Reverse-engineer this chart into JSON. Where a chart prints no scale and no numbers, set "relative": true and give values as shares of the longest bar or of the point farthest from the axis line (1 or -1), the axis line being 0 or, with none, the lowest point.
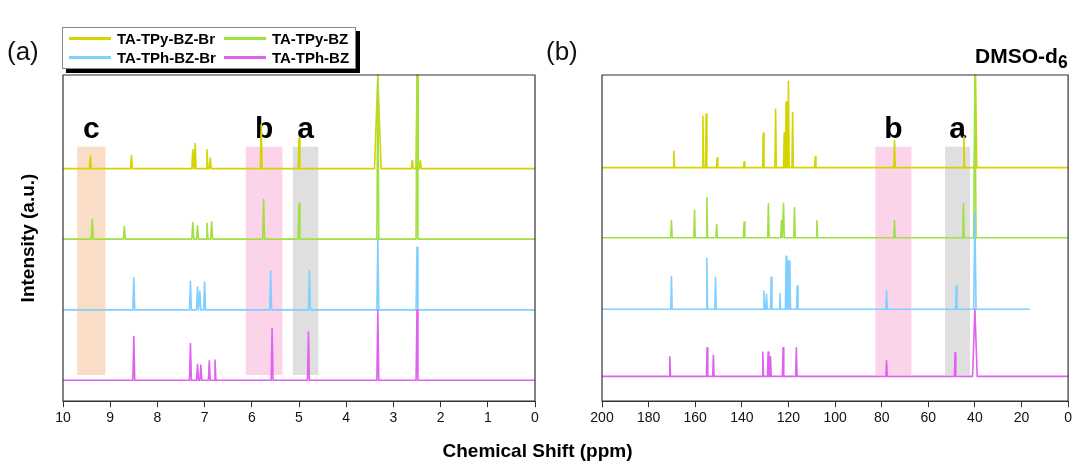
{
  "chart_data": [
    {
      "type": "line",
      "title": "(a)",
      "xlabel": "Chemical Shift (ppm)",
      "ylabel": "Intensity (a.u.)",
      "relative": true,
      "legend": "top left",
      "xlim": [
        10,
        0
      ],
      "xticks": [
        10,
        9,
        8,
        7,
        6,
        5,
        4,
        3,
        2,
        1,
        0
      ],
      "bands": [
        {
          "axis": "x",
          "from": 9.7,
          "to": 9.1,
          "label": "c",
          "color": "#f8d2b4"
        },
        {
          "axis": "x",
          "from": 6.13,
          "to": 5.35,
          "label": "b",
          "color": "#fbc6e3"
        },
        {
          "axis": "x",
          "from": 5.13,
          "to": 4.59,
          "label": "a",
          "color": "#d4d4d4"
        }
      ],
      "series": [
        {
          "name": "TA-TPy-BZ-Br",
          "color": "#d4d400",
          "x": [
            10,
            9.44,
            9.42,
            9.4,
            8.57,
            8.55,
            8.53,
            7.27,
            7.25,
            7.23,
            7.22,
            7.2,
            7.18,
            6.97,
            6.95,
            6.93,
            6.9,
            6.88,
            6.86,
            5.82,
            5.8,
            5.78,
            5.02,
            5,
            4.98,
            3.4,
            3.33,
            3.26,
            2.62,
            2.6,
            2.58,
            2.52,
            2.5,
            2.48,
            2.45,
            2.43,
            2.41,
            0
          ],
          "values": [
            0.713,
            0.713,
            0.753,
            0.713,
            0.713,
            0.753,
            0.713,
            0.713,
            0.771,
            0.713,
            0.713,
            0.79,
            0.713,
            0.713,
            0.771,
            0.713,
            0.713,
            0.746,
            0.713,
            0.713,
            0.848,
            0.713,
            0.713,
            0.807,
            0.713,
            0.713,
            1,
            0.713,
            0.713,
            0.738,
            0.713,
            0.713,
            1,
            0.713,
            0.713,
            0.738,
            0.713,
            0.713
          ]
        },
        {
          "name": "TA-TPy-BZ",
          "color": "#a0e040",
          "x": [
            10,
            9.4,
            9.38,
            9.36,
            8.72,
            8.7,
            8.68,
            7.27,
            7.25,
            7.23,
            7.17,
            7.15,
            7.13,
            6.97,
            6.95,
            6.93,
            6.87,
            6.85,
            6.83,
            5.77,
            5.75,
            5.73,
            5.02,
            5,
            4.98,
            3.35,
            3.33,
            3.31,
            2.52,
            2.5,
            2.48,
            0
          ],
          "values": [
            0.497,
            0.497,
            0.558,
            0.497,
            0.497,
            0.535,
            0.497,
            0.497,
            0.548,
            0.497,
            0.497,
            0.538,
            0.497,
            0.497,
            0.545,
            0.497,
            0.497,
            0.55,
            0.497,
            0.497,
            0.619,
            0.497,
            0.497,
            0.607,
            0.497,
            0.497,
            1,
            0.497,
            0.497,
            1,
            0.497,
            0.497
          ]
        },
        {
          "name": "TA-TPh-BZ-Br",
          "color": "#7fcfff",
          "x": [
            10,
            8.52,
            8.5,
            8.48,
            7.32,
            7.3,
            7.28,
            7.17,
            7.15,
            7.13,
            7.12,
            7.1,
            7.08,
            7.02,
            7,
            6.98,
            5.62,
            5.6,
            5.58,
            4.8,
            4.78,
            4.76,
            3.35,
            3.33,
            3.31,
            2.52,
            2.5,
            2.48,
            0
          ],
          "values": [
            0.28,
            0.28,
            0.378,
            0.28,
            0.28,
            0.367,
            0.28,
            0.28,
            0.35,
            0.28,
            0.28,
            0.336,
            0.28,
            0.28,
            0.365,
            0.28,
            0.28,
            0.4,
            0.28,
            0.28,
            0.4,
            0.28,
            0.28,
            0.497,
            0.28,
            0.28,
            0.472,
            0.28,
            0.28
          ]
        },
        {
          "name": "TA-TPh-BZ",
          "color": "#e060f0",
          "x": [
            10,
            8.52,
            8.5,
            8.48,
            7.32,
            7.3,
            7.28,
            7.17,
            7.15,
            7.13,
            7.1,
            7.08,
            7.06,
            6.92,
            6.9,
            6.88,
            6.8,
            6.78,
            6.76,
            5.59,
            5.57,
            5.55,
            4.82,
            4.8,
            4.78,
            3.35,
            3.33,
            3.31,
            2.52,
            2.5,
            2.48,
            0
          ],
          "values": [
            0.064,
            0.064,
            0.198,
            0.064,
            0.064,
            0.177,
            0.064,
            0.064,
            0.113,
            0.064,
            0.064,
            0.111,
            0.064,
            0.064,
            0.124,
            0.064,
            0.064,
            0.126,
            0.064,
            0.064,
            0.223,
            0.064,
            0.064,
            0.212,
            0.064,
            0.064,
            0.28,
            0.064,
            0.064,
            0.28,
            0.064,
            0.064
          ]
        }
      ]
    },
    {
      "type": "line",
      "title": "(b)",
      "relative": true,
      "xlim": [
        200,
        0
      ],
      "xticks": [
        200,
        180,
        160,
        140,
        120,
        100,
        80,
        60,
        40,
        20,
        0
      ],
      "annotations": [
        "DMSO-d$_{6}$"
      ],
      "bands": [
        {
          "axis": "x",
          "from": 82.7,
          "to": 67.2,
          "label": "b",
          "color": "#fbc6e3"
        },
        {
          "axis": "x",
          "from": 52.8,
          "to": 42.1,
          "label": "a",
          "color": "#d4d4d4"
        }
      ],
      "series": [
        {
          "color": "#d4d400",
          "x": [
            200,
            169.5,
            169.2,
            168.9,
            157,
            156.7,
            156.4,
            155.6,
            155.3,
            155,
            150.9,
            150.6,
            150.3,
            139.3,
            139,
            138.7,
            131.1,
            130.8,
            130.5,
            125.8,
            125.5,
            125.2,
            122.1,
            121.8,
            121.5,
            121.3,
            121,
            120.7,
            120.3,
            120,
            119.7,
            118.5,
            118.2,
            117.9,
            108.8,
            108.5,
            108.2,
            74.8,
            74.5,
            74.2,
            45,
            44.7,
            44.4,
            40.2,
            39.7,
            39.2,
            0
          ],
          "values": [
            0.716,
            0.716,
            0.766,
            0.716,
            0.716,
            0.874,
            0.716,
            0.716,
            0.88,
            0.716,
            0.716,
            0.746,
            0.716,
            0.716,
            0.734,
            0.716,
            0.716,
            0.822,
            0.716,
            0.716,
            0.895,
            0.716,
            0.716,
            0.822,
            0.716,
            0.716,
            0.917,
            0.716,
            0.716,
            0.981,
            0.716,
            0.716,
            0.884,
            0.716,
            0.716,
            0.749,
            0.716,
            0.716,
            0.799,
            0.716,
            0.716,
            0.811,
            0.716,
            0.716,
            1,
            0.716,
            0.716
          ]
        },
        {
          "color": "#a0e040",
          "x": [
            200,
            170.5,
            170.2,
            169.9,
            160.6,
            160.3,
            160,
            155.3,
            155,
            154.7,
            151.1,
            150.8,
            150.5,
            139.3,
            139,
            138.7,
            128.9,
            128.6,
            128.3,
            123.3,
            123,
            122.7,
            122.4,
            122.1,
            121.8,
            117.7,
            117.4,
            117.1,
            108.1,
            107.8,
            107.5,
            74.8,
            74.5,
            74.2,
            45.2,
            44.9,
            44.6,
            40.5,
            40,
            39.5,
            0
          ],
          "values": [
            0.501,
            0.501,
            0.554,
            0.501,
            0.501,
            0.585,
            0.501,
            0.501,
            0.624,
            0.501,
            0.501,
            0.541,
            0.501,
            0.501,
            0.549,
            0.501,
            0.501,
            0.605,
            0.501,
            0.501,
            0.554,
            0.501,
            0.501,
            0.607,
            0.501,
            0.501,
            0.593,
            0.501,
            0.501,
            0.553,
            0.501,
            0.501,
            0.554,
            0.501,
            0.501,
            0.605,
            0.501,
            0.501,
            1,
            0.501,
            0.501
          ]
        },
        {
          "color": "#7fcfff",
          "x": [
            200,
            170.5,
            170.2,
            169.9,
            155.3,
            155,
            154.7,
            151.6,
            151.3,
            151,
            130.8,
            130.5,
            130.2,
            129.7,
            129.4,
            129.1,
            127.7,
            127.4,
            127.1,
            124,
            123.7,
            123.4,
            121.3,
            121,
            120.7,
            120.4,
            120.1,
            119.8,
            119.7,
            119.4,
            119.1,
            116.5,
            116.2,
            115.9,
            78.2,
            77.9,
            77.6,
            48.3,
            48,
            47.7,
            40.5,
            40,
            39.5,
            16.3
          ],
          "values": [
            0.282,
            0.282,
            0.383,
            0.282,
            0.282,
            0.438,
            0.282,
            0.282,
            0.38,
            0.282,
            0.282,
            0.338,
            0.282,
            0.282,
            0.328,
            0.282,
            0.282,
            0.38,
            0.282,
            0.282,
            0.33,
            0.282,
            0.282,
            0.444,
            0.282,
            0.282,
            0.43,
            0.282,
            0.282,
            0.43,
            0.282,
            0.282,
            0.353,
            0.282,
            0.282,
            0.338,
            0.282,
            0.282,
            0.353,
            0.282,
            0.282,
            0.58,
            0.282,
            0.282
          ]
        },
        {
          "color": "#e060f0",
          "x": [
            200,
            171.2,
            170.9,
            170.6,
            155.2,
            154.9,
            154.6,
            152.5,
            152.2,
            151.9,
            131.3,
            131,
            130.7,
            129,
            128.7,
            128.4,
            128,
            127.7,
            127.4,
            122.6,
            122.3,
            122,
            116.9,
            116.6,
            116.3,
            78.2,
            77.9,
            77.6,
            48.8,
            48.5,
            48.2,
            41,
            40,
            39,
            0
          ],
          "values": [
            0.076,
            0.076,
            0.136,
            0.076,
            0.076,
            0.164,
            0.076,
            0.076,
            0.141,
            0.076,
            0.076,
            0.151,
            0.076,
            0.076,
            0.151,
            0.076,
            0.076,
            0.136,
            0.076,
            0.076,
            0.164,
            0.076,
            0.076,
            0.164,
            0.076,
            0.076,
            0.124,
            0.076,
            0.076,
            0.148,
            0.076,
            0.076,
            0.282,
            0.076,
            0.076
          ]
        }
      ]
    }
  ]
}
